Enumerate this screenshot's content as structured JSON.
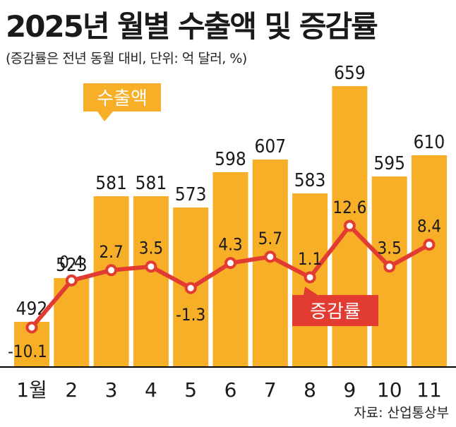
{
  "title": "2025년 월별 수출액 및 증감률",
  "subtitle": "(증감률은 전년 동월 대비, 단위: 억 달러, %)",
  "source": "자료: 산업통상부",
  "colors": {
    "bar": "#F7AF27",
    "line": "#E23B32",
    "marker_fill": "#ffffff",
    "axis": "#000000"
  },
  "chart_data": {
    "type": "bar",
    "categories": [
      "1월",
      "2",
      "3",
      "4",
      "5",
      "6",
      "7",
      "8",
      "9",
      "10",
      "11"
    ],
    "series": [
      {
        "name": "수출액",
        "type": "bar",
        "values": [
          492,
          523,
          581,
          581,
          573,
          598,
          607,
          583,
          659,
          595,
          610
        ]
      },
      {
        "name": "증감률",
        "type": "line",
        "values": [
          -10.1,
          0.4,
          2.7,
          3.5,
          -1.3,
          4.3,
          5.7,
          1.1,
          12.6,
          3.5,
          8.4
        ]
      }
    ],
    "value_labels": [
      "492",
      "523",
      "581",
      "581",
      "573",
      "598",
      "607",
      "583",
      "659",
      "595",
      "610"
    ],
    "rate_labels": [
      "-10.1",
      "0.4",
      "2.7",
      "3.5",
      "-1.3",
      "4.3",
      "5.7",
      "1.1",
      "12.6",
      "3.5",
      "8.4"
    ],
    "bar_ylim": [
      0,
      659
    ],
    "rate_ylim": [
      -10.1,
      12.6
    ],
    "legend": [
      {
        "label": "수출액",
        "color": "#F7AF27",
        "placement": "near-bars"
      },
      {
        "label": "증감률",
        "color": "#E23B32",
        "placement": "near-line"
      }
    ]
  }
}
